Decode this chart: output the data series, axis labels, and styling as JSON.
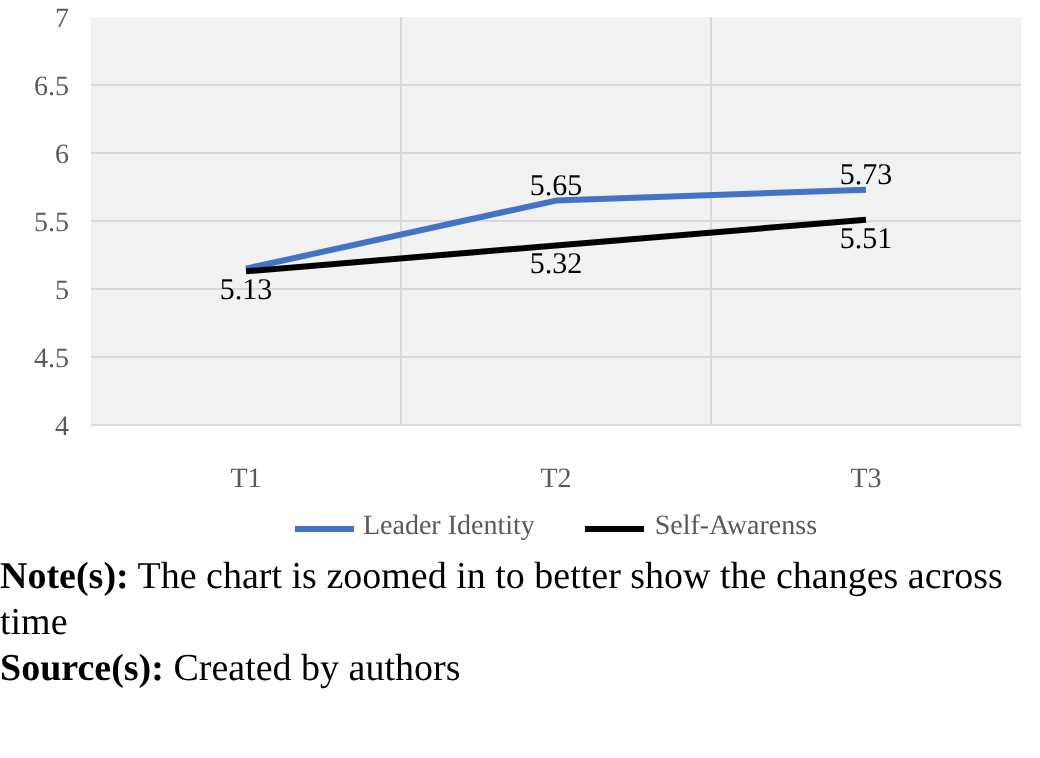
{
  "chart_data": {
    "type": "line",
    "categories": [
      "T1",
      "T2",
      "T3"
    ],
    "series": [
      {
        "name": "Leader Identity",
        "color": "#4472c4",
        "values": [
          5.15,
          5.65,
          5.73
        ],
        "value_labels": [
          null,
          "5.65",
          "5.73"
        ]
      },
      {
        "name": "Self-Awarenss",
        "color": "#000000",
        "values": [
          5.13,
          5.32,
          5.51
        ],
        "value_labels": [
          "5.13",
          "5.32",
          "5.51"
        ]
      }
    ],
    "ylim": [
      4,
      7
    ],
    "yticks": [
      4,
      4.5,
      5,
      5.5,
      6,
      6.5,
      7
    ],
    "grid": true,
    "legend": "bottom",
    "marker": "none",
    "line_style": "solid",
    "annotations": [
      "Note(s): The chart is zoomed in to better show the changes across time",
      "Source(s): Created by authors"
    ]
  }
}
